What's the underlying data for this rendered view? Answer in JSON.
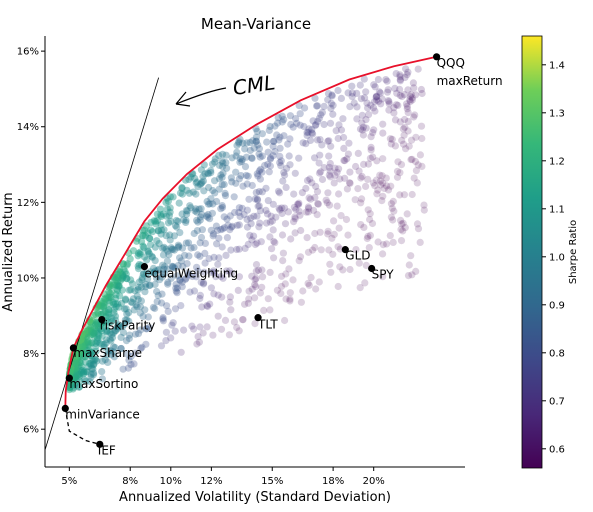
{
  "chart_data": {
    "type": "scatter",
    "title": "Mean-Variance",
    "xlabel": "Annualized Volatility (Standard Deviation)",
    "ylabel": "Annualized Return",
    "xlim": [
      3.8,
      24.5
    ],
    "ylim": [
      5.0,
      16.4
    ],
    "x_ticks": [
      5,
      8,
      10,
      12,
      15,
      18,
      20
    ],
    "x_tick_labels": [
      "5%",
      "8%",
      "10%",
      "12%",
      "15%",
      "18%",
      "20%"
    ],
    "y_ticks": [
      6,
      8,
      10,
      12,
      14,
      16
    ],
    "y_tick_labels": [
      "6%",
      "8%",
      "10%",
      "12%",
      "14%",
      "16%"
    ],
    "grid": false,
    "colorbar": {
      "label": "Sharpe Ratio",
      "range": [
        0.56,
        1.46
      ],
      "ticks": [
        0.6,
        0.7,
        0.8,
        0.9,
        1.0,
        1.1,
        1.2,
        1.3,
        1.4
      ],
      "tick_labels": [
        "0.6",
        "0.7",
        "0.8",
        "0.9",
        "1.0",
        "1.1",
        "1.2",
        "1.3",
        "1.4"
      ],
      "colormap": "viridis"
    },
    "named_points": [
      {
        "name": "QQQ",
        "x": 23.1,
        "y": 15.85
      },
      {
        "name": "maxReturn",
        "x": 23.1,
        "y": 15.85
      },
      {
        "name": "GLD",
        "x": 18.6,
        "y": 10.75
      },
      {
        "name": "SPY",
        "x": 19.9,
        "y": 10.25
      },
      {
        "name": "TLT",
        "x": 14.3,
        "y": 8.95
      },
      {
        "name": "equalWeighting",
        "x": 8.7,
        "y": 10.3
      },
      {
        "name": "riskParity",
        "x": 6.6,
        "y": 8.9
      },
      {
        "name": "maxSharpe",
        "x": 5.2,
        "y": 8.15
      },
      {
        "name": "maxSortino",
        "x": 5.0,
        "y": 7.35
      },
      {
        "name": "minVariance",
        "x": 4.8,
        "y": 6.55
      },
      {
        "name": "IEF",
        "x": 6.5,
        "y": 5.6
      }
    ],
    "efficient_frontier": [
      [
        4.8,
        6.55
      ],
      [
        4.82,
        7.0
      ],
      [
        4.95,
        7.5
      ],
      [
        5.2,
        8.15
      ],
      [
        5.6,
        8.6
      ],
      [
        6.1,
        9.1
      ],
      [
        6.8,
        9.8
      ],
      [
        7.7,
        10.6
      ],
      [
        8.7,
        11.5
      ],
      [
        9.6,
        12.1
      ],
      [
        10.8,
        12.75
      ],
      [
        12.3,
        13.4
      ],
      [
        14.2,
        14.05
      ],
      [
        16.4,
        14.7
      ],
      [
        18.8,
        15.25
      ],
      [
        21.0,
        15.6
      ],
      [
        23.1,
        15.85
      ]
    ],
    "inefficient_frontier": [
      [
        4.8,
        6.55
      ],
      [
        5.0,
        5.95
      ],
      [
        5.8,
        5.7
      ],
      [
        6.5,
        5.6
      ]
    ],
    "capital_market_line": [
      [
        3.8,
        5.45
      ],
      [
        9.4,
        15.3
      ]
    ],
    "annotations": [
      {
        "text": "CML"
      }
    ],
    "series_colors": {
      "frontier": "#e8102a",
      "points": "#000000"
    }
  }
}
